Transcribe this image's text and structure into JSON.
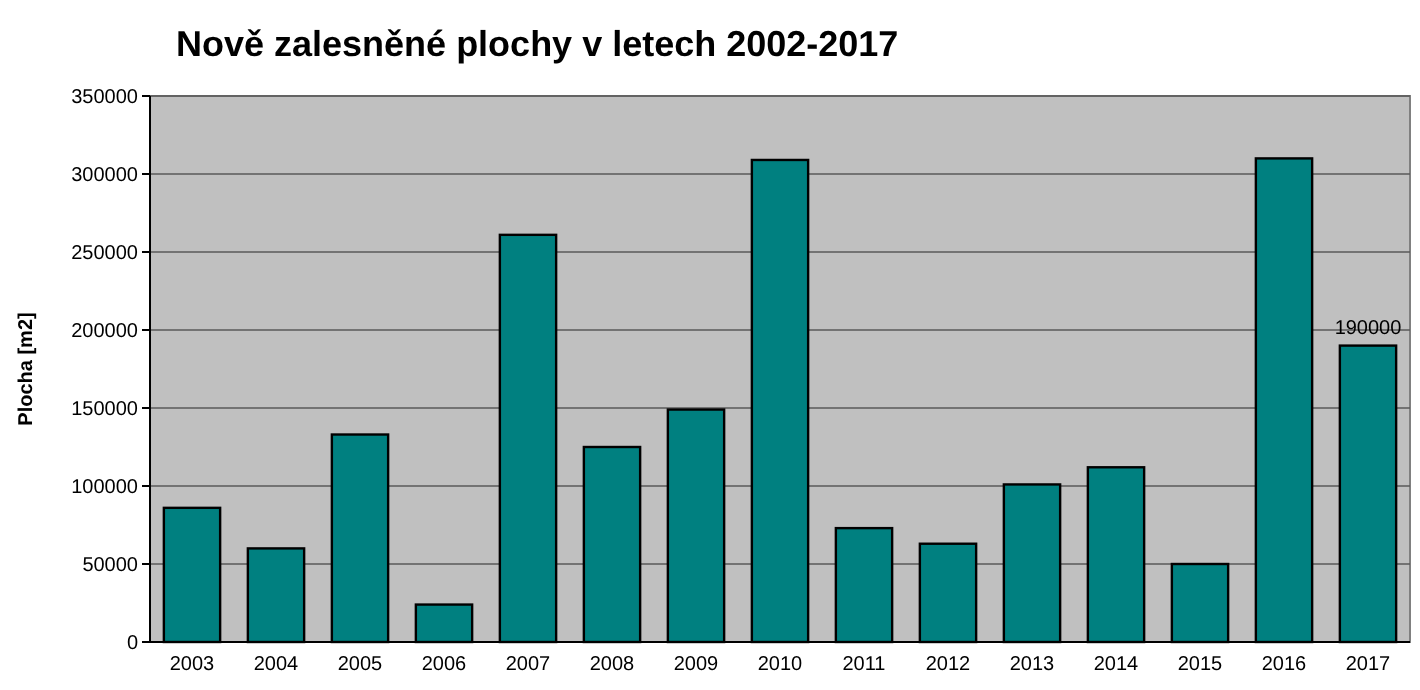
{
  "chart_data": {
    "type": "bar",
    "title": "Nově zalesněné plochy v letech 2002-2017",
    "ylabel": "Plocha [m2]",
    "categories": [
      "2003",
      "2004",
      "2005",
      "2006",
      "2007",
      "2008",
      "2009",
      "2010",
      "2011",
      "2012",
      "2013",
      "2014",
      "2015",
      "2016",
      "2017"
    ],
    "values": [
      86000,
      60000,
      133000,
      24000,
      261000,
      125000,
      149000,
      309000,
      73000,
      63000,
      101000,
      112000,
      50000,
      310000,
      190000
    ],
    "value_labels": [
      null,
      null,
      null,
      null,
      null,
      null,
      null,
      null,
      null,
      null,
      null,
      null,
      null,
      null,
      "190000"
    ],
    "color": "#008080",
    "ylim": [
      0,
      350000
    ],
    "yticks": [
      0,
      50000,
      100000,
      150000,
      200000,
      250000,
      300000,
      350000
    ],
    "grid": "y"
  }
}
